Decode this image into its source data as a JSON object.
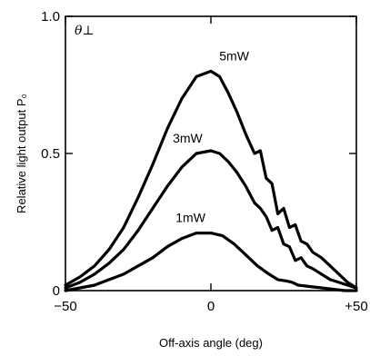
{
  "chart_data": {
    "type": "line",
    "xlabel": "Off-axis angle (deg)",
    "ylabel": "Relative light output P₀",
    "annotation": "θ⊥",
    "xlim": [
      -50,
      50
    ],
    "ylim": [
      0,
      1.0
    ],
    "x_ticks": [
      {
        "value": -50,
        "label": "−50"
      },
      {
        "value": 0,
        "label": "0"
      },
      {
        "value": 50,
        "label": "+50"
      }
    ],
    "y_ticks": [
      {
        "value": 0,
        "label": "0"
      },
      {
        "value": 0.5,
        "label": "0.5"
      },
      {
        "value": 1.0,
        "label": "1.0"
      }
    ],
    "grid": false,
    "series": [
      {
        "name": "5mW",
        "points": [
          [
            -50,
            0.02
          ],
          [
            -45,
            0.05
          ],
          [
            -40,
            0.09
          ],
          [
            -35,
            0.15
          ],
          [
            -30,
            0.23
          ],
          [
            -25,
            0.34
          ],
          [
            -20,
            0.46
          ],
          [
            -15,
            0.59
          ],
          [
            -10,
            0.7
          ],
          [
            -5,
            0.78
          ],
          [
            0,
            0.8
          ],
          [
            3,
            0.78
          ],
          [
            6,
            0.72
          ],
          [
            9,
            0.65
          ],
          [
            12,
            0.57
          ],
          [
            15,
            0.5
          ],
          [
            17,
            0.51
          ],
          [
            19,
            0.41
          ],
          [
            21,
            0.39
          ],
          [
            23,
            0.28
          ],
          [
            25,
            0.3
          ],
          [
            27,
            0.23
          ],
          [
            29,
            0.24
          ],
          [
            31,
            0.18
          ],
          [
            33,
            0.17
          ],
          [
            35,
            0.14
          ],
          [
            38,
            0.12
          ],
          [
            41,
            0.09
          ],
          [
            44,
            0.06
          ],
          [
            47,
            0.03
          ],
          [
            50,
            0.01
          ]
        ]
      },
      {
        "name": "3mW",
        "points": [
          [
            -50,
            0.01
          ],
          [
            -45,
            0.03
          ],
          [
            -40,
            0.06
          ],
          [
            -35,
            0.1
          ],
          [
            -30,
            0.15
          ],
          [
            -25,
            0.22
          ],
          [
            -20,
            0.3
          ],
          [
            -15,
            0.38
          ],
          [
            -10,
            0.45
          ],
          [
            -5,
            0.5
          ],
          [
            0,
            0.51
          ],
          [
            3,
            0.5
          ],
          [
            6,
            0.47
          ],
          [
            9,
            0.43
          ],
          [
            12,
            0.38
          ],
          [
            15,
            0.32
          ],
          [
            17,
            0.3
          ],
          [
            19,
            0.27
          ],
          [
            21,
            0.22
          ],
          [
            23,
            0.23
          ],
          [
            25,
            0.17
          ],
          [
            27,
            0.16
          ],
          [
            29,
            0.11
          ],
          [
            31,
            0.12
          ],
          [
            33,
            0.09
          ],
          [
            35,
            0.08
          ],
          [
            38,
            0.06
          ],
          [
            41,
            0.04
          ],
          [
            44,
            0.03
          ],
          [
            47,
            0.02
          ],
          [
            50,
            0.01
          ]
        ]
      },
      {
        "name": "1mW",
        "points": [
          [
            -50,
            0.0
          ],
          [
            -45,
            0.01
          ],
          [
            -40,
            0.02
          ],
          [
            -35,
            0.04
          ],
          [
            -30,
            0.06
          ],
          [
            -25,
            0.09
          ],
          [
            -20,
            0.12
          ],
          [
            -15,
            0.16
          ],
          [
            -10,
            0.19
          ],
          [
            -5,
            0.21
          ],
          [
            0,
            0.21
          ],
          [
            4,
            0.2
          ],
          [
            8,
            0.17
          ],
          [
            12,
            0.13
          ],
          [
            16,
            0.09
          ],
          [
            20,
            0.06
          ],
          [
            23,
            0.04
          ],
          [
            26,
            0.035
          ],
          [
            28,
            0.03
          ],
          [
            30,
            0.02
          ],
          [
            34,
            0.015
          ],
          [
            38,
            0.01
          ],
          [
            42,
            0.005
          ],
          [
            46,
            0.0
          ],
          [
            50,
            0.0
          ]
        ]
      }
    ],
    "labels_at": [
      {
        "series": "5mW",
        "x": 8,
        "y": 0.84
      },
      {
        "series": "3mW",
        "x": -8,
        "y": 0.54
      },
      {
        "series": "1mW",
        "x": -7,
        "y": 0.25
      }
    ]
  }
}
